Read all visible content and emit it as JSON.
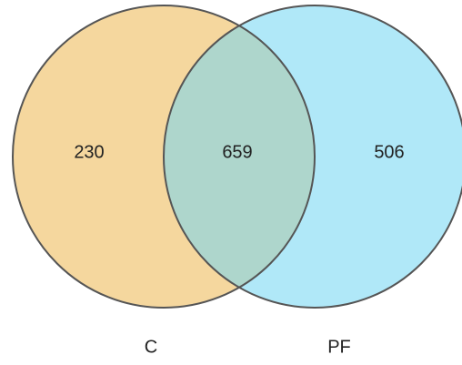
{
  "sets": [
    {
      "name": "C",
      "only_count": "230",
      "fill": "#f5d79e",
      "stroke": "#555555"
    },
    {
      "name": "PF",
      "only_count": "506",
      "fill": "#b0e8f8",
      "stroke": "#555555"
    }
  ],
  "intersection": {
    "count": "659",
    "fill": "#aed6cc"
  }
}
